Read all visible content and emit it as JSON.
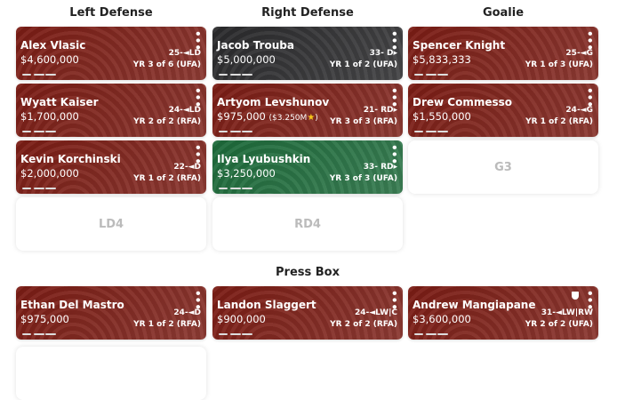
{
  "columns": [
    {
      "title": "Left Defense",
      "slots": [
        {
          "name": "Alex Vlasic",
          "salary": "$4,600,000",
          "tag": "25-◄LD",
          "contract": "YR 3 of 6 (UFA)",
          "color": "#7a1c14"
        },
        {
          "name": "Wyatt Kaiser",
          "salary": "$1,700,000",
          "tag": "24-◄LD",
          "contract": "YR 2 of 2 (RFA)",
          "color": "#7a1c14"
        },
        {
          "name": "Kevin Korchinski",
          "salary": "$2,000,000",
          "tag": "22-◄D",
          "contract": "YR 1 of 2 (RFA)",
          "color": "#7a1c14"
        },
        {
          "placeholder": "LD4"
        }
      ]
    },
    {
      "title": "Right Defense",
      "slots": [
        {
          "name": "Jacob Trouba",
          "salary": "$5,000,000",
          "tag": "33- D▸",
          "contract": "YR 1 of 2 (UFA)",
          "color": "#2a2a2c"
        },
        {
          "name": "Artyom Levshunov",
          "salary": "$975,000",
          "bonus": "($3.250M",
          "bonus_close": ")",
          "tag": "21- RD▸",
          "contract": "YR 3 of 3 (RFA)",
          "color": "#7a1c14"
        },
        {
          "name": "Ilya Lyubushkin",
          "salary": "$3,250,000",
          "tag": "33- RD▸",
          "contract": "YR 3 of 3 (UFA)",
          "color": "#1d6a3a"
        },
        {
          "placeholder": "RD4"
        }
      ]
    },
    {
      "title": "Goalie",
      "slots": [
        {
          "name": "Spencer Knight",
          "salary": "$5,833,333",
          "tag": "25-◄G",
          "contract": "YR 1 of 3 (UFA)",
          "color": "#7a1c14"
        },
        {
          "name": "Drew Commesso",
          "salary": "$1,550,000",
          "tag": "24-◄G",
          "contract": "YR 1 of 2 (RFA)",
          "color": "#7a1c14"
        },
        {
          "placeholder": "G3"
        }
      ]
    }
  ],
  "press_box": {
    "title": "Press Box",
    "players": [
      {
        "name": "Ethan Del Mastro",
        "salary": "$975,000",
        "tag": "24-◄D",
        "contract": "YR 1 of 2 (RFA)",
        "color": "#7a1c14"
      },
      {
        "name": "Landon Slaggert",
        "salary": "$900,000",
        "tag": "24-◄LW|C",
        "contract": "YR 2 of 2 (RFA)",
        "color": "#7a1c14"
      },
      {
        "name": "Andrew Mangiapane",
        "salary": "$3,600,000",
        "tag": "31-◄LW|RW",
        "contract": "YR 2 of 2 (UFA)",
        "color": "#7a1c14",
        "shield": true
      }
    ]
  }
}
